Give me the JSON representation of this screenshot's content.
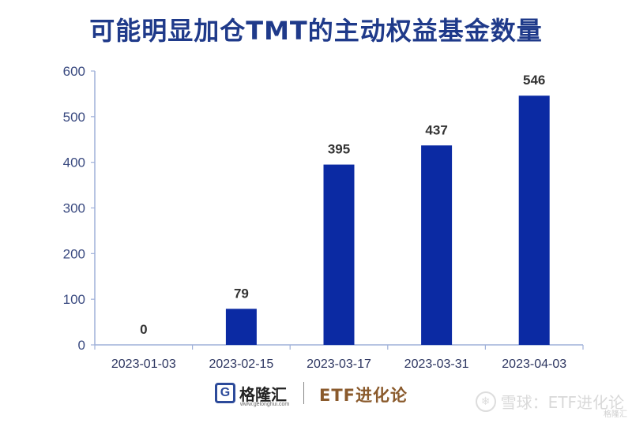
{
  "chart_data": {
    "type": "bar",
    "title": "可能明显加仓TMT的主动权益基金数量",
    "categories": [
      "2023-01-03",
      "2023-02-15",
      "2023-03-17",
      "2023-03-31",
      "2023-04-03"
    ],
    "values": [
      0,
      79,
      395,
      437,
      546
    ],
    "data_labels": [
      "0",
      "79",
      "395",
      "437",
      "546"
    ],
    "ylim": [
      0,
      600
    ],
    "yticks": [
      0,
      100,
      200,
      300,
      400,
      500,
      600
    ],
    "grid": false,
    "bar_color": "#0b2aa3",
    "axis_color": "#9fb0d9"
  },
  "footer": {
    "logo_glyph": "G",
    "brand_name": "格隆汇",
    "brand_url": "www.gelonghui.com",
    "etf_label": "ETF进化论"
  },
  "watermark": {
    "text": "雪球：ETF进化论",
    "small_text": "格隆汇"
  }
}
